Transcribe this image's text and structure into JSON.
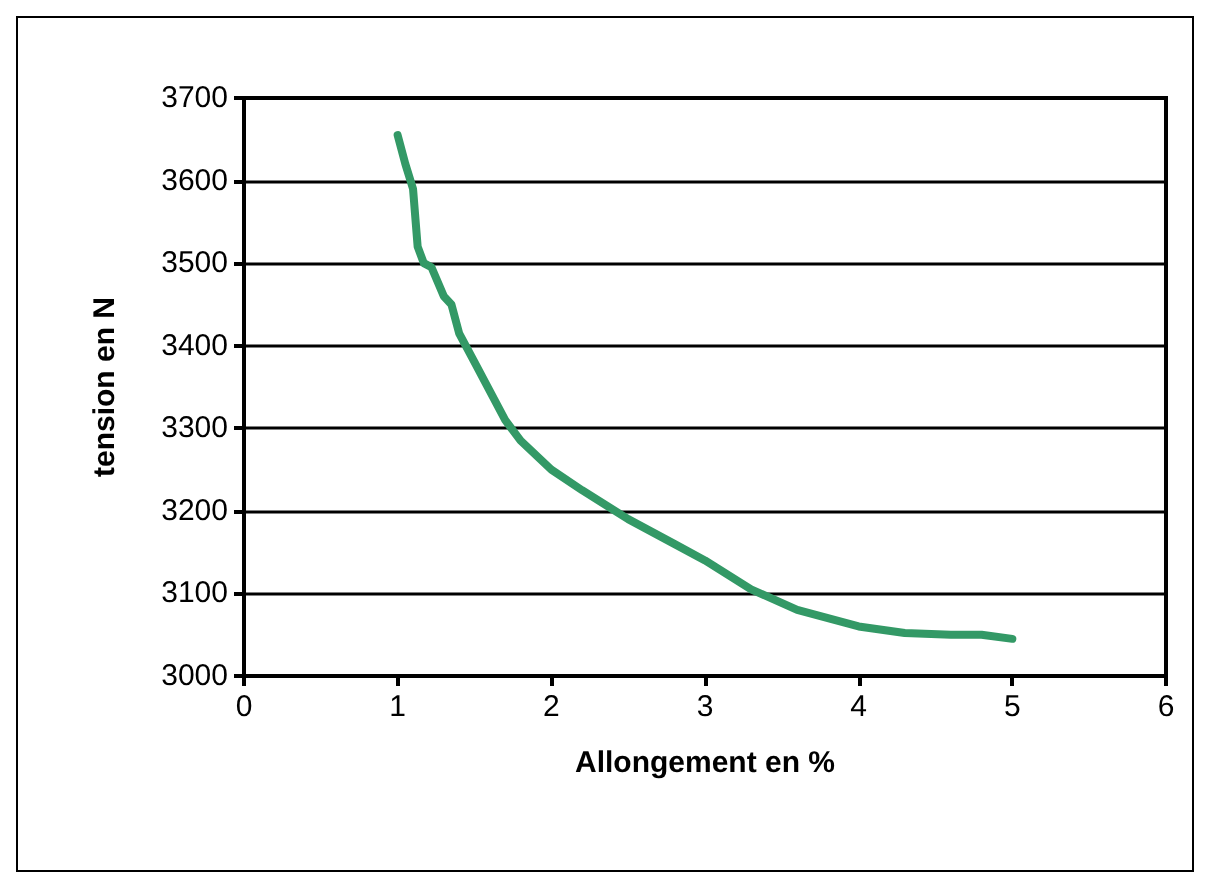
{
  "chart_data": {
    "type": "line",
    "xlabel": "Allongement en %",
    "ylabel": "tension en N",
    "x": [
      1,
      1.05,
      1.1,
      1.13,
      1.17,
      1.22,
      1.3,
      1.35,
      1.4,
      1.5,
      1.6,
      1.7,
      1.8,
      2,
      2.2,
      2.5,
      2.8,
      3,
      3.3,
      3.6,
      4,
      4.3,
      4.6,
      4.8,
      5
    ],
    "series": [
      {
        "color": "#339966",
        "values": [
          3655,
          3620,
          3590,
          3520,
          3500,
          3495,
          3460,
          3450,
          3415,
          3380,
          3345,
          3310,
          3285,
          3250,
          3225,
          3190,
          3160,
          3140,
          3105,
          3080,
          3060,
          3052,
          3050,
          3050,
          3045
        ]
      }
    ],
    "xlim": [
      0,
      6
    ],
    "xticks": [
      0,
      1,
      2,
      3,
      4,
      5,
      6
    ],
    "ylim": [
      3000,
      3700
    ],
    "yticks": [
      3000,
      3100,
      3200,
      3300,
      3400,
      3500,
      3600,
      3700
    ],
    "grid": "y",
    "marker": "none",
    "line_style": "solid"
  }
}
